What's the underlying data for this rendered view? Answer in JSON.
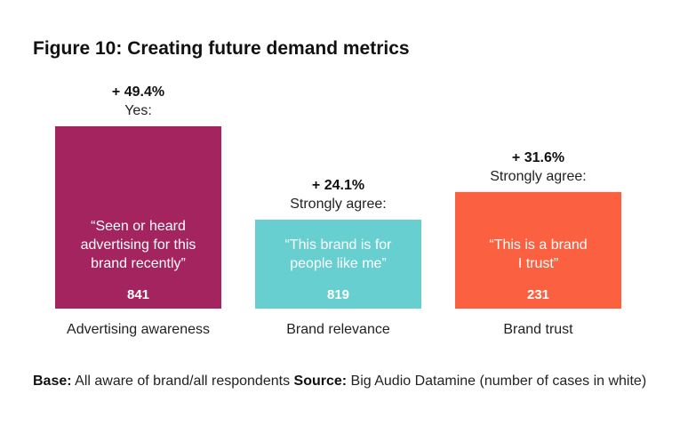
{
  "title": "Figure 10: Creating future demand metrics",
  "chart_data": {
    "type": "bar",
    "categories": [
      "Advertising awareness",
      "Brand relevance",
      "Brand trust"
    ],
    "values": [
      49.4,
      24.1,
      31.6
    ],
    "value_labels": [
      "+ 49.4%",
      "+ 24.1%",
      "+ 31.6%"
    ],
    "answer_labels": [
      "Yes:",
      "Strongly agree:",
      "Strongly agree:"
    ],
    "statements": [
      [
        "“Seen or heard",
        "advertising for this",
        "brand recently”"
      ],
      [
        "“This brand is for",
        "people like me”"
      ],
      [
        "“This is a brand",
        "I trust”"
      ]
    ],
    "case_counts": [
      "841",
      "819",
      "231"
    ],
    "colors": [
      "#a3245e",
      "#67cfd0",
      "#fb6140"
    ],
    "ylim": [
      0,
      49.4
    ],
    "grid": false,
    "legend": "none"
  },
  "footer": {
    "base_label": "Base:",
    "base_text": " All aware of brand/all respondents ",
    "source_label": "Source:",
    "source_text": " Big Audio Datamine (number of cases in white)"
  }
}
